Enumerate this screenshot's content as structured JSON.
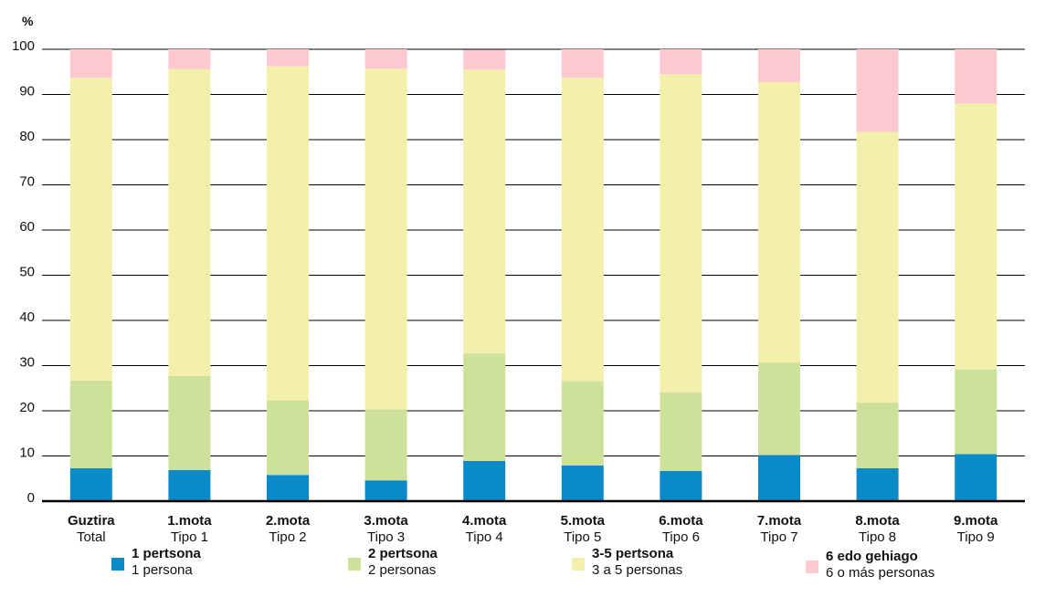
{
  "chart_data": {
    "type": "bar",
    "stacked": true,
    "ylabel": "%",
    "ylim": [
      0,
      100
    ],
    "yticks": [
      0,
      10,
      20,
      30,
      40,
      50,
      60,
      70,
      80,
      90,
      100
    ],
    "grid": true,
    "categories": [
      {
        "line1": "Guztira",
        "line2": "Total"
      },
      {
        "line1": "1.mota",
        "line2": "Tipo 1"
      },
      {
        "line1": "2.mota",
        "line2": "Tipo 2"
      },
      {
        "line1": "3.mota",
        "line2": "Tipo 3"
      },
      {
        "line1": "4.mota",
        "line2": "Tipo 4"
      },
      {
        "line1": "5.mota",
        "line2": "Tipo 5"
      },
      {
        "line1": "6.mota",
        "line2": "Tipo 6"
      },
      {
        "line1": "7.mota",
        "line2": "Tipo 7"
      },
      {
        "line1": "8.mota",
        "line2": "Tipo 8"
      },
      {
        "line1": "9.mota",
        "line2": "Tipo 9"
      }
    ],
    "series": [
      {
        "name": "1 pertsona",
        "name_es": "1 persona",
        "color": "#0a8ac8",
        "values": [
          7.3,
          6.9,
          5.8,
          4.6,
          8.9,
          7.9,
          6.7,
          10.2,
          7.3,
          10.4
        ]
      },
      {
        "name": "2 pertsona",
        "name_es": "2 personas",
        "color": "#cde19b",
        "values": [
          19.4,
          20.8,
          16.5,
          15.7,
          23.8,
          18.7,
          17.4,
          20.5,
          14.5,
          18.7
        ]
      },
      {
        "name": "3-5 pertsona",
        "name_es": "3 a 5 personas",
        "color": "#f2f0aa",
        "values": [
          67.0,
          67.9,
          73.9,
          75.4,
          62.8,
          67.1,
          70.4,
          62.0,
          59.9,
          58.9
        ]
      },
      {
        "name": "6 edo gehiago",
        "name_es": "6 o más personas",
        "color": "#fdc9d1",
        "values": [
          6.3,
          4.4,
          3.8,
          4.3,
          4.4,
          6.3,
          5.5,
          7.3,
          18.3,
          12.0
        ]
      }
    ],
    "legend_position": "bottom"
  }
}
